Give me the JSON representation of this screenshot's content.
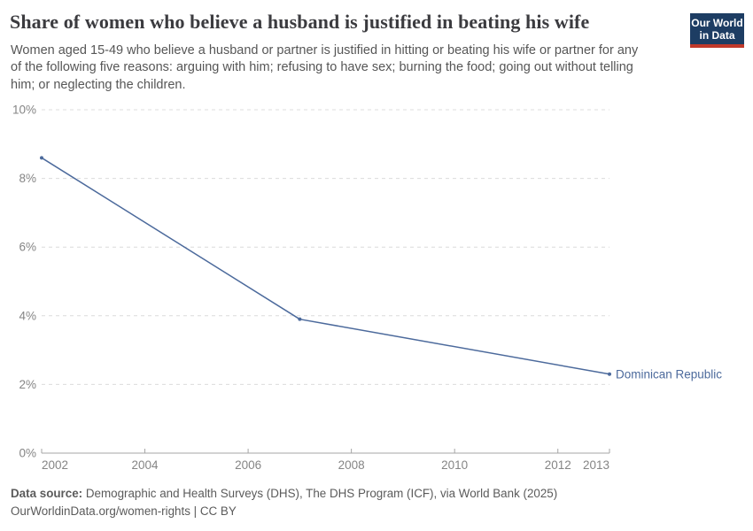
{
  "header": {
    "title": "Share of women who believe a husband is justified in beating his wife",
    "subtitle_lines": [
      "Women aged 15-49 who believe a husband or partner is justified in hitting or beating his wife or partner for any",
      "of the following five reasons: arguing with him; refusing to have sex; burning the food; going out without telling",
      "him; or neglecting the children."
    ],
    "logo": {
      "line1": "Our World",
      "line2": "in Data"
    }
  },
  "chart_data": {
    "type": "line",
    "title": "Share of women who believe a husband is justified in beating his wife",
    "xlabel": "",
    "ylabel": "",
    "xlim": [
      2002,
      2013
    ],
    "ylim": [
      0,
      10
    ],
    "x_ticks": [
      2002,
      2004,
      2006,
      2008,
      2010,
      2012,
      2013
    ],
    "y_ticks": [
      0,
      2,
      4,
      6,
      8,
      10
    ],
    "y_tick_suffix": "%",
    "grid": "horizontal-dashed",
    "legend_position": "end-of-line",
    "series": [
      {
        "name": "Dominican Republic",
        "color": "#4c6a9c",
        "x": [
          2002,
          2007,
          2013
        ],
        "values": [
          8.6,
          3.9,
          2.3
        ]
      }
    ]
  },
  "footer": {
    "source_label": "Data source:",
    "source_text": " Demographic and Health Surveys (DHS), The DHS Program (ICF), via World Bank (2025)",
    "attribution": "OurWorldinData.org/women-rights | CC BY"
  },
  "colors": {
    "accent_line": "#4c6a9c",
    "logo_bg": "#1d3d63",
    "logo_underline": "#c0392b",
    "grid": "#dcdcdc",
    "axis": "#a5a5a5",
    "tick_label": "#858585",
    "title_text": "#3b3b3f",
    "body_text": "#565656"
  }
}
